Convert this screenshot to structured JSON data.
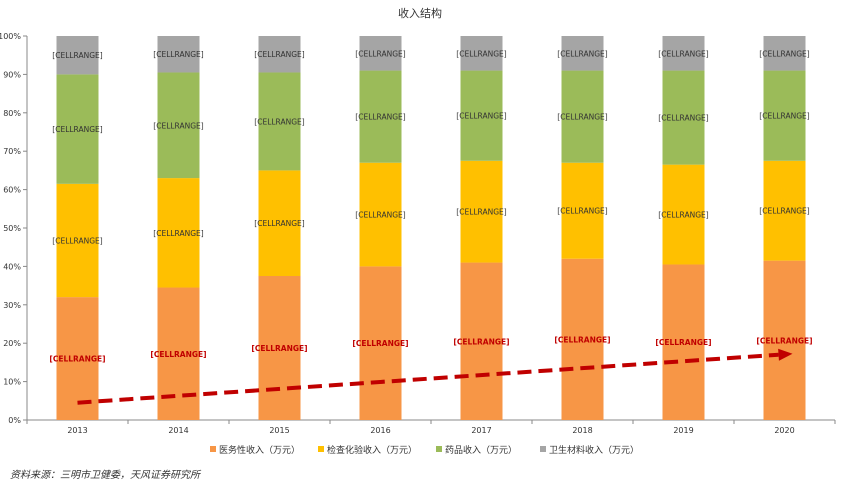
{
  "chart_data": {
    "type": "bar",
    "stacked": true,
    "normalized": true,
    "title": "收入结构",
    "categories": [
      "2013",
      "2014",
      "2015",
      "2016",
      "2017",
      "2018",
      "2019",
      "2020"
    ],
    "series": [
      {
        "name": "医务性收入（万元）",
        "color": "#F79646",
        "values": [
          32,
          34.5,
          37.5,
          40,
          41,
          42,
          40.5,
          41.5
        ],
        "labels": [
          "[CELLRANGE]",
          "[CELLRANGE]",
          "[CELLRANGE]",
          "[CELLRANGE]",
          "[CELLRANGE]",
          "[CELLRANGE]",
          "[CELLRANGE]",
          "[CELLRANGE]"
        ],
        "label_color": "#C00000"
      },
      {
        "name": "检查化验收入（万元）",
        "color": "#FFC000",
        "values": [
          29.5,
          28.5,
          27.5,
          27,
          26.5,
          25,
          26,
          26
        ],
        "labels": [
          "[CELLRANGE]",
          "[CELLRANGE]",
          "[CELLRANGE]",
          "[CELLRANGE]",
          "[CELLRANGE]",
          "[CELLRANGE]",
          "[CELLRANGE]",
          "[CELLRANGE]"
        ],
        "label_color": "#333333"
      },
      {
        "name": "药品收入（万元）",
        "color": "#9BBB59",
        "values": [
          28.5,
          27.5,
          25.5,
          24,
          23.5,
          24,
          24.5,
          23.5
        ],
        "labels": [
          "[CELLRANGE]",
          "[CELLRANGE]",
          "[CELLRANGE]",
          "[CELLRANGE]",
          "[CELLRANGE]",
          "[CELLRANGE]",
          "[CELLRANGE]",
          "[CELLRANGE]"
        ],
        "label_color": "#333333"
      },
      {
        "name": "卫生材料收入（万元）",
        "color": "#A5A5A5",
        "values": [
          10,
          9.5,
          9.5,
          9,
          9,
          9,
          9,
          9
        ],
        "labels": [
          "[CELLRANGE]",
          "[CELLRANGE]",
          "[CELLRANGE]",
          "[CELLRANGE]",
          "[CELLRANGE]",
          "[CELLRANGE]",
          "[CELLRANGE]",
          "[CELLRANGE]"
        ],
        "label_color": "#333333"
      }
    ],
    "yticks": [
      "0%",
      "10%",
      "20%",
      "30%",
      "40%",
      "50%",
      "60%",
      "70%",
      "80%",
      "90%",
      "100%"
    ],
    "ylim": [
      0,
      100
    ],
    "trend_arrow": {
      "from": {
        "category": "2013",
        "y": 4.5
      },
      "to": {
        "category": "2020",
        "y": 17
      },
      "color": "#C00000"
    },
    "legend_position": "bottom",
    "grid": false
  },
  "source_text": "资料来源：三明市卫健委，天风证券研究所"
}
